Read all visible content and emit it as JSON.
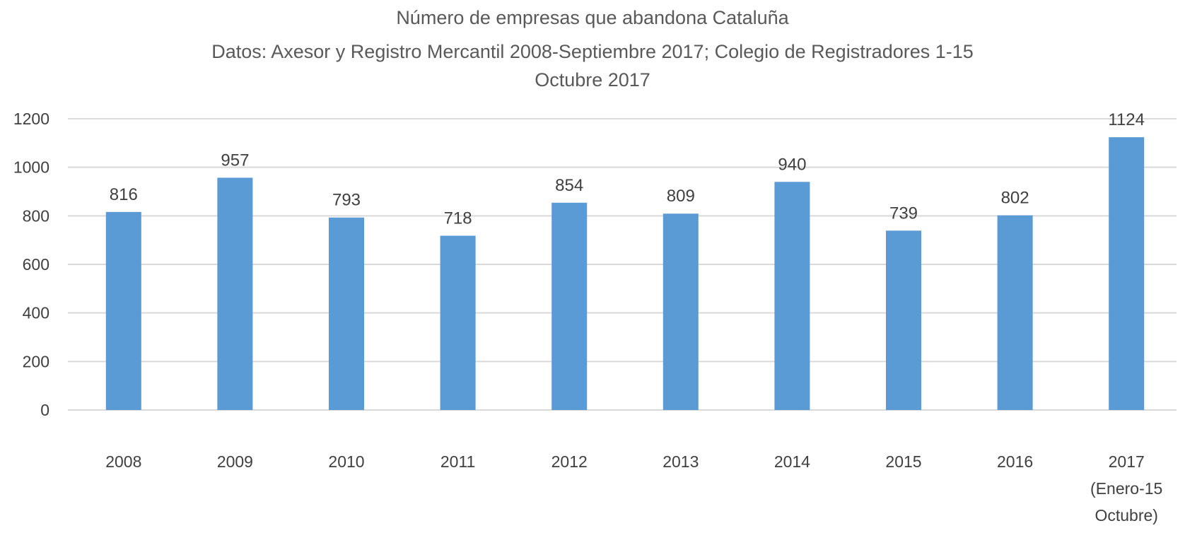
{
  "chart_data": {
    "type": "bar",
    "title": [
      "Número de empresas que abandona Cataluña",
      "Datos: Axesor y Registro Mercantil 2008-Septiembre 2017; Colegio de Registradores 1-15",
      "Octubre 2017"
    ],
    "categories": [
      [
        "2008"
      ],
      [
        "2009"
      ],
      [
        "2010"
      ],
      [
        "2011"
      ],
      [
        "2012"
      ],
      [
        "2013"
      ],
      [
        "2014"
      ],
      [
        "2015"
      ],
      [
        "2016"
      ],
      [
        "2017",
        "(Enero-15",
        "Octubre)"
      ]
    ],
    "values": [
      816,
      957,
      793,
      718,
      854,
      809,
      940,
      739,
      802,
      1124
    ],
    "xlabel": "",
    "ylabel": "",
    "ylim": [
      0,
      1200
    ],
    "yticks": [
      0,
      200,
      400,
      600,
      800,
      1000,
      1200
    ],
    "grid": true,
    "data_labels": true,
    "bar_color": "#5B9BD5",
    "grid_color": "#D9D9D9"
  }
}
